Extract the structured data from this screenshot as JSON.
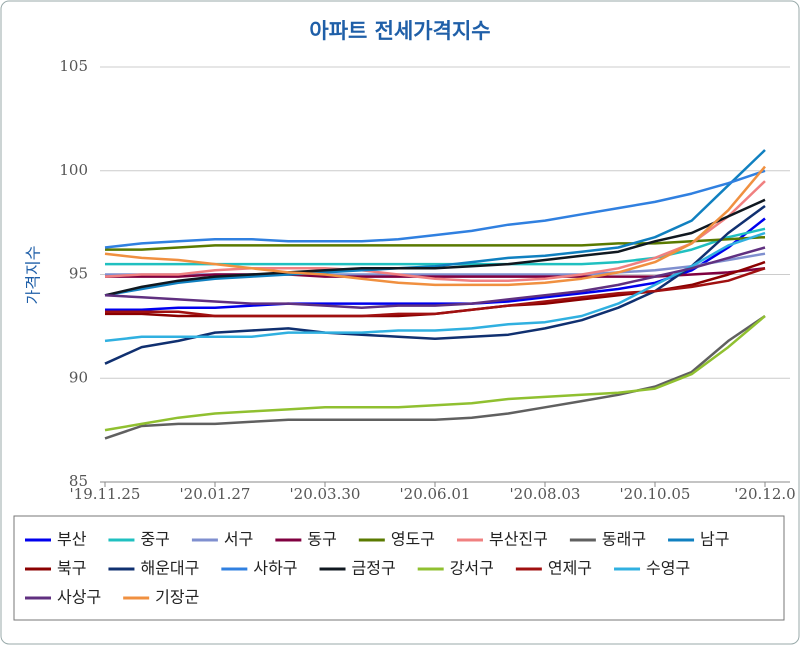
{
  "chart_data": {
    "type": "line",
    "title": "아파트 전세가격지수",
    "y_label": "가격지수",
    "categories": [
      "'19.11.25",
      null,
      null,
      "'20.01.27",
      null,
      null,
      "'20.03.30",
      null,
      null,
      "'20.06.01",
      null,
      null,
      "'20.08.03",
      null,
      null,
      "'20.10.05",
      null,
      null,
      "'20.12.0"
    ],
    "ylim": [
      85,
      105
    ],
    "yticks": [
      85,
      90,
      95,
      100,
      105
    ],
    "grid": true,
    "series": [
      {
        "name": "부산",
        "color": "#0000ee",
        "values": [
          93.3,
          93.3,
          93.4,
          93.4,
          93.5,
          93.6,
          93.6,
          93.6,
          93.6,
          93.6,
          93.6,
          93.7,
          93.9,
          94.1,
          94.3,
          94.6,
          95.2,
          96.3,
          97.7
        ]
      },
      {
        "name": "중구",
        "color": "#20c0c0",
        "values": [
          95.5,
          95.5,
          95.5,
          95.5,
          95.5,
          95.5,
          95.5,
          95.5,
          95.5,
          95.5,
          95.5,
          95.5,
          95.5,
          95.5,
          95.6,
          95.8,
          96.2,
          96.8,
          97.2
        ]
      },
      {
        "name": "서구",
        "color": "#7f8fcf",
        "values": [
          95.0,
          95.0,
          95.0,
          95.0,
          95.0,
          95.0,
          95.0,
          95.0,
          95.0,
          95.0,
          95.0,
          95.0,
          95.0,
          95.0,
          95.1,
          95.2,
          95.4,
          95.7,
          96.0
        ]
      },
      {
        "name": "동구",
        "color": "#800040",
        "values": [
          94.9,
          94.9,
          94.9,
          95.0,
          95.0,
          95.0,
          94.9,
          94.9,
          94.9,
          94.9,
          94.9,
          94.9,
          94.9,
          94.9,
          94.9,
          94.9,
          95.0,
          95.1,
          95.3
        ]
      },
      {
        "name": "영도구",
        "color": "#5a7a00",
        "values": [
          96.2,
          96.2,
          96.3,
          96.4,
          96.4,
          96.4,
          96.4,
          96.4,
          96.4,
          96.4,
          96.4,
          96.4,
          96.4,
          96.4,
          96.5,
          96.5,
          96.6,
          96.7,
          96.8
        ]
      },
      {
        "name": "부산진구",
        "color": "#f08080",
        "values": [
          94.9,
          95.0,
          95.0,
          95.2,
          95.3,
          95.3,
          95.3,
          95.2,
          95.0,
          94.8,
          94.7,
          94.7,
          94.8,
          95.0,
          95.3,
          95.8,
          96.5,
          97.8,
          99.5
        ]
      },
      {
        "name": "동래구",
        "color": "#606060",
        "values": [
          87.1,
          87.7,
          87.8,
          87.8,
          87.9,
          88.0,
          88.0,
          88.0,
          88.0,
          88.0,
          88.1,
          88.3,
          88.6,
          88.9,
          89.2,
          89.6,
          90.3,
          91.8,
          93.0
        ]
      },
      {
        "name": "남구",
        "color": "#1080c0",
        "values": [
          94.0,
          94.3,
          94.6,
          94.8,
          94.9,
          95.0,
          95.1,
          95.2,
          95.3,
          95.4,
          95.6,
          95.8,
          95.9,
          96.1,
          96.3,
          96.8,
          97.6,
          99.3,
          101.0
        ]
      },
      {
        "name": "북구",
        "color": "#8b0000",
        "values": [
          93.1,
          93.1,
          93.0,
          93.0,
          93.0,
          93.0,
          93.0,
          93.0,
          93.0,
          93.1,
          93.3,
          93.5,
          93.6,
          93.8,
          94.0,
          94.2,
          94.5,
          95.0,
          95.6
        ]
      },
      {
        "name": "해운대구",
        "color": "#103070",
        "values": [
          90.7,
          91.5,
          91.8,
          92.2,
          92.3,
          92.4,
          92.2,
          92.1,
          92.0,
          91.9,
          92.0,
          92.1,
          92.4,
          92.8,
          93.4,
          94.2,
          95.4,
          97.0,
          98.3
        ]
      },
      {
        "name": "사하구",
        "color": "#3080e0",
        "values": [
          96.3,
          96.5,
          96.6,
          96.7,
          96.7,
          96.6,
          96.6,
          96.6,
          96.7,
          96.9,
          97.1,
          97.4,
          97.6,
          97.9,
          98.2,
          98.5,
          98.9,
          99.4,
          100.0
        ]
      },
      {
        "name": "금정구",
        "color": "#101820",
        "values": [
          94.0,
          94.4,
          94.7,
          94.9,
          95.0,
          95.1,
          95.2,
          95.3,
          95.3,
          95.3,
          95.4,
          95.5,
          95.7,
          95.9,
          96.1,
          96.6,
          97.0,
          97.8,
          98.6
        ]
      },
      {
        "name": "강서구",
        "color": "#90c030",
        "values": [
          87.5,
          87.8,
          88.1,
          88.3,
          88.4,
          88.5,
          88.6,
          88.6,
          88.6,
          88.7,
          88.8,
          89.0,
          89.1,
          89.2,
          89.3,
          89.5,
          90.2,
          91.5,
          93.0
        ]
      },
      {
        "name": "연제구",
        "color": "#a01010",
        "values": [
          93.2,
          93.2,
          93.2,
          93.0,
          93.0,
          93.0,
          93.0,
          93.0,
          93.1,
          93.1,
          93.3,
          93.5,
          93.7,
          93.9,
          94.1,
          94.2,
          94.4,
          94.7,
          95.3
        ]
      },
      {
        "name": "수영구",
        "color": "#30b0e0",
        "values": [
          91.8,
          92.0,
          92.0,
          92.0,
          92.0,
          92.2,
          92.2,
          92.2,
          92.3,
          92.3,
          92.4,
          92.6,
          92.7,
          93.0,
          93.6,
          94.5,
          95.4,
          96.4,
          97.0
        ]
      },
      {
        "name": "사상구",
        "color": "#603080",
        "values": [
          94.0,
          93.9,
          93.8,
          93.7,
          93.6,
          93.6,
          93.5,
          93.4,
          93.5,
          93.5,
          93.6,
          93.8,
          94.0,
          94.2,
          94.5,
          94.9,
          95.3,
          95.8,
          96.3
        ]
      },
      {
        "name": "기장군",
        "color": "#f09040",
        "values": [
          96.0,
          95.8,
          95.7,
          95.5,
          95.3,
          95.1,
          95.0,
          94.8,
          94.6,
          94.5,
          94.5,
          94.5,
          94.6,
          94.8,
          95.1,
          95.6,
          96.5,
          98.1,
          100.2
        ]
      }
    ]
  }
}
